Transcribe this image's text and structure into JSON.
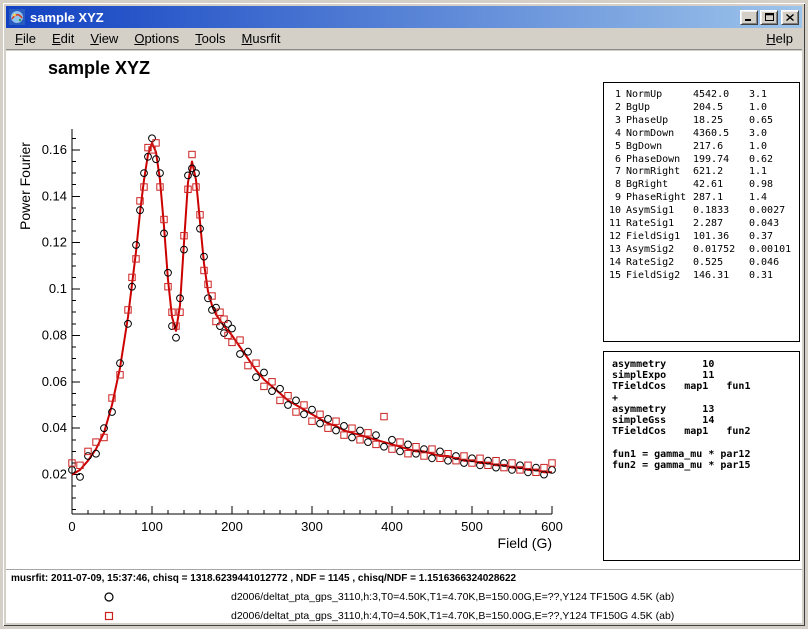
{
  "window": {
    "title": "sample XYZ"
  },
  "menu": {
    "items": [
      "File",
      "Edit",
      "View",
      "Options",
      "Tools",
      "Musrfit"
    ],
    "help": "Help"
  },
  "canvas": {
    "title": "sample XYZ"
  },
  "colors": {
    "titlebar_left": "#1141c2",
    "titlebar_right": "#9dc4ea",
    "menubar_bg": "#d4d0c8",
    "fit_red": "#cc0000",
    "marker_black": "#000000",
    "marker_red": "#cc2222"
  },
  "param_box": {
    "rows": [
      {
        "no": "1",
        "name": "NormUp",
        "value": "4542.0",
        "error": "3.1"
      },
      {
        "no": "2",
        "name": "BgUp",
        "value": "204.5",
        "error": "1.0"
      },
      {
        "no": "3",
        "name": "PhaseUp",
        "value": "18.25",
        "error": "0.65"
      },
      {
        "no": "4",
        "name": "NormDown",
        "value": "4360.5",
        "error": "3.0"
      },
      {
        "no": "5",
        "name": "BgDown",
        "value": "217.6",
        "error": "1.0"
      },
      {
        "no": "6",
        "name": "PhaseDown",
        "value": "199.74",
        "error": "0.62"
      },
      {
        "no": "7",
        "name": "NormRight",
        "value": "621.2",
        "error": "1.1"
      },
      {
        "no": "8",
        "name": "BgRight",
        "value": "42.61",
        "error": "0.98"
      },
      {
        "no": "9",
        "name": "PhaseRight",
        "value": "287.1",
        "error": "1.4"
      },
      {
        "no": "10",
        "name": "AsymSig1",
        "value": "0.1833",
        "error": "0.0027"
      },
      {
        "no": "11",
        "name": "RateSig1",
        "value": "2.287",
        "error": "0.043"
      },
      {
        "no": "12",
        "name": "FieldSig1",
        "value": "101.36",
        "error": "0.37"
      },
      {
        "no": "13",
        "name": "AsymSig2",
        "value": "0.01752",
        "error": "0.00101"
      },
      {
        "no": "14",
        "name": "RateSig2",
        "value": "0.525",
        "error": "0.046"
      },
      {
        "no": "15",
        "name": "FieldSig2",
        "value": "146.31",
        "error": "0.31"
      }
    ]
  },
  "theory_box": {
    "lines": [
      "asymmetry      10",
      "simplExpo      11",
      "TFieldCos   map1   fun1",
      "+",
      "asymmetry      13",
      "simpleGss      14",
      "TFieldCos   map1   fun2",
      "",
      "fun1 = gamma_mu * par12",
      "fun2 = gamma_mu * par15"
    ]
  },
  "status": {
    "text": "musrfit: 2011-07-09, 15:37:46, chisq = 1318.6239441012772 , NDF = 1145 , chisq/NDF = 1.1516366324028622"
  },
  "legend": [
    {
      "marker": "circle",
      "color": "#000000",
      "label": "d2006/deltat_pta_gps_3110,h:3,T0=4.50K,T1=4.70K,B=150.00G,E=??,Y124 TF150G 4.5K (ab)"
    },
    {
      "marker": "square",
      "color": "#cc2222",
      "label": "d2006/deltat_pta_gps_3110,h:4,T0=4.50K,T1=4.70K,B=150.00G,E=??,Y124 TF150G 4.5K (ab)"
    }
  ],
  "chart_data": {
    "type": "scatter",
    "title": "sample XYZ",
    "xlabel": "Field (G)",
    "ylabel": "Power Fourier",
    "xlim": [
      0,
      600
    ],
    "ylim": [
      0.003,
      0.169
    ],
    "xticks": [
      0,
      100,
      200,
      300,
      400,
      500,
      600
    ],
    "xtick_labels": [
      "0",
      "100",
      "200",
      "300",
      "400",
      "500",
      "600"
    ],
    "yticks": [
      0.02,
      0.04,
      0.06,
      0.08,
      0.1,
      0.12,
      0.14,
      0.16
    ],
    "ytick_labels": [
      "0.02",
      "0.04",
      "0.06",
      "0.08",
      "0.1",
      "0.12",
      "0.14",
      "0.16"
    ],
    "x_major_step": 100,
    "x_minor_step": 20,
    "y_minor_step": 0.005,
    "grid": false,
    "legend_position": "bottom",
    "fit_curve": {
      "name": "fit",
      "color": "#cc0000",
      "points": [
        [
          0,
          0.02
        ],
        [
          10,
          0.022
        ],
        [
          20,
          0.026
        ],
        [
          30,
          0.031
        ],
        [
          40,
          0.038
        ],
        [
          50,
          0.05
        ],
        [
          60,
          0.066
        ],
        [
          70,
          0.088
        ],
        [
          80,
          0.116
        ],
        [
          85,
          0.133
        ],
        [
          90,
          0.147
        ],
        [
          95,
          0.158
        ],
        [
          100,
          0.163
        ],
        [
          105,
          0.159
        ],
        [
          110,
          0.147
        ],
        [
          115,
          0.127
        ],
        [
          120,
          0.104
        ],
        [
          125,
          0.088
        ],
        [
          130,
          0.082
        ],
        [
          135,
          0.093
        ],
        [
          140,
          0.12
        ],
        [
          145,
          0.146
        ],
        [
          150,
          0.155
        ],
        [
          155,
          0.147
        ],
        [
          160,
          0.129
        ],
        [
          165,
          0.111
        ],
        [
          170,
          0.099
        ],
        [
          175,
          0.093
        ],
        [
          180,
          0.089
        ],
        [
          190,
          0.084
        ],
        [
          200,
          0.08
        ],
        [
          210,
          0.075
        ],
        [
          220,
          0.07
        ],
        [
          230,
          0.065
        ],
        [
          240,
          0.061
        ],
        [
          250,
          0.058
        ],
        [
          260,
          0.055
        ],
        [
          270,
          0.052
        ],
        [
          280,
          0.05
        ],
        [
          290,
          0.048
        ],
        [
          300,
          0.046
        ],
        [
          310,
          0.044
        ],
        [
          320,
          0.042
        ],
        [
          330,
          0.041
        ],
        [
          340,
          0.039
        ],
        [
          350,
          0.038
        ],
        [
          360,
          0.037
        ],
        [
          370,
          0.036
        ],
        [
          380,
          0.035
        ],
        [
          390,
          0.034
        ],
        [
          400,
          0.033
        ],
        [
          410,
          0.032
        ],
        [
          420,
          0.031
        ],
        [
          430,
          0.03
        ],
        [
          440,
          0.03
        ],
        [
          450,
          0.029
        ],
        [
          460,
          0.028
        ],
        [
          470,
          0.028
        ],
        [
          480,
          0.027
        ],
        [
          490,
          0.026
        ],
        [
          500,
          0.026
        ],
        [
          510,
          0.025
        ],
        [
          520,
          0.025
        ],
        [
          530,
          0.024
        ],
        [
          540,
          0.024
        ],
        [
          550,
          0.023
        ],
        [
          560,
          0.023
        ],
        [
          570,
          0.022
        ],
        [
          580,
          0.022
        ],
        [
          590,
          0.021
        ],
        [
          600,
          0.021
        ]
      ]
    },
    "series": [
      {
        "name": "d2006/deltat_pta_gps_3110,h:3,T0=4.50K,T1=4.70K,B=150.00G,E=??,Y124 TF150G 4.5K (ab)",
        "marker": "circle",
        "color": "#000000",
        "points": [
          [
            0,
            0.022
          ],
          [
            10,
            0.019
          ],
          [
            20,
            0.028
          ],
          [
            30,
            0.029
          ],
          [
            40,
            0.04
          ],
          [
            50,
            0.047
          ],
          [
            60,
            0.068
          ],
          [
            70,
            0.085
          ],
          [
            75,
            0.101
          ],
          [
            80,
            0.119
          ],
          [
            85,
            0.134
          ],
          [
            90,
            0.15
          ],
          [
            95,
            0.157
          ],
          [
            100,
            0.165
          ],
          [
            105,
            0.156
          ],
          [
            110,
            0.15
          ],
          [
            115,
            0.124
          ],
          [
            120,
            0.107
          ],
          [
            125,
            0.084
          ],
          [
            130,
            0.079
          ],
          [
            135,
            0.096
          ],
          [
            140,
            0.117
          ],
          [
            145,
            0.149
          ],
          [
            150,
            0.152
          ],
          [
            155,
            0.15
          ],
          [
            160,
            0.126
          ],
          [
            165,
            0.114
          ],
          [
            170,
            0.096
          ],
          [
            175,
            0.091
          ],
          [
            180,
            0.092
          ],
          [
            185,
            0.084
          ],
          [
            190,
            0.081
          ],
          [
            195,
            0.085
          ],
          [
            200,
            0.083
          ],
          [
            210,
            0.072
          ],
          [
            220,
            0.073
          ],
          [
            230,
            0.062
          ],
          [
            240,
            0.064
          ],
          [
            250,
            0.056
          ],
          [
            260,
            0.057
          ],
          [
            270,
            0.05
          ],
          [
            280,
            0.052
          ],
          [
            290,
            0.046
          ],
          [
            300,
            0.048
          ],
          [
            310,
            0.042
          ],
          [
            320,
            0.044
          ],
          [
            330,
            0.039
          ],
          [
            340,
            0.041
          ],
          [
            350,
            0.036
          ],
          [
            360,
            0.039
          ],
          [
            370,
            0.034
          ],
          [
            380,
            0.037
          ],
          [
            390,
            0.032
          ],
          [
            400,
            0.035
          ],
          [
            410,
            0.03
          ],
          [
            420,
            0.033
          ],
          [
            430,
            0.029
          ],
          [
            440,
            0.031
          ],
          [
            450,
            0.027
          ],
          [
            460,
            0.03
          ],
          [
            470,
            0.026
          ],
          [
            480,
            0.028
          ],
          [
            490,
            0.025
          ],
          [
            500,
            0.027
          ],
          [
            510,
            0.024
          ],
          [
            520,
            0.026
          ],
          [
            530,
            0.023
          ],
          [
            540,
            0.025
          ],
          [
            550,
            0.022
          ],
          [
            560,
            0.024
          ],
          [
            570,
            0.021
          ],
          [
            580,
            0.023
          ],
          [
            590,
            0.02
          ],
          [
            600,
            0.022
          ]
        ]
      },
      {
        "name": "d2006/deltat_pta_gps_3110,h:4,T0=4.50K,T1=4.70K,B=150.00G,E=??,Y124 TF150G 4.5K (ab)",
        "marker": "square",
        "color": "#cc2222",
        "points": [
          [
            0,
            0.025
          ],
          [
            10,
            0.024
          ],
          [
            20,
            0.03
          ],
          [
            30,
            0.034
          ],
          [
            40,
            0.036
          ],
          [
            50,
            0.053
          ],
          [
            60,
            0.063
          ],
          [
            70,
            0.091
          ],
          [
            75,
            0.105
          ],
          [
            80,
            0.113
          ],
          [
            85,
            0.138
          ],
          [
            90,
            0.144
          ],
          [
            95,
            0.161
          ],
          [
            100,
            0.16
          ],
          [
            105,
            0.163
          ],
          [
            110,
            0.144
          ],
          [
            115,
            0.13
          ],
          [
            120,
            0.101
          ],
          [
            125,
            0.09
          ],
          [
            130,
            0.084
          ],
          [
            135,
            0.09
          ],
          [
            140,
            0.123
          ],
          [
            145,
            0.143
          ],
          [
            150,
            0.158
          ],
          [
            155,
            0.144
          ],
          [
            160,
            0.132
          ],
          [
            165,
            0.108
          ],
          [
            170,
            0.102
          ],
          [
            175,
            0.097
          ],
          [
            180,
            0.086
          ],
          [
            185,
            0.09
          ],
          [
            190,
            0.087
          ],
          [
            195,
            0.08
          ],
          [
            200,
            0.077
          ],
          [
            210,
            0.078
          ],
          [
            220,
            0.067
          ],
          [
            230,
            0.068
          ],
          [
            240,
            0.058
          ],
          [
            250,
            0.06
          ],
          [
            260,
            0.052
          ],
          [
            270,
            0.054
          ],
          [
            280,
            0.047
          ],
          [
            290,
            0.05
          ],
          [
            300,
            0.043
          ],
          [
            310,
            0.046
          ],
          [
            320,
            0.04
          ],
          [
            330,
            0.043
          ],
          [
            340,
            0.037
          ],
          [
            350,
            0.04
          ],
          [
            360,
            0.035
          ],
          [
            370,
            0.038
          ],
          [
            380,
            0.033
          ],
          [
            390,
            0.045
          ],
          [
            400,
            0.031
          ],
          [
            410,
            0.034
          ],
          [
            420,
            0.029
          ],
          [
            430,
            0.032
          ],
          [
            440,
            0.028
          ],
          [
            450,
            0.031
          ],
          [
            460,
            0.027
          ],
          [
            470,
            0.029
          ],
          [
            480,
            0.026
          ],
          [
            490,
            0.028
          ],
          [
            500,
            0.025
          ],
          [
            510,
            0.027
          ],
          [
            520,
            0.024
          ],
          [
            530,
            0.026
          ],
          [
            540,
            0.023
          ],
          [
            550,
            0.025
          ],
          [
            560,
            0.022
          ],
          [
            570,
            0.024
          ],
          [
            580,
            0.021
          ],
          [
            590,
            0.023
          ],
          [
            600,
            0.025
          ]
        ]
      }
    ]
  }
}
